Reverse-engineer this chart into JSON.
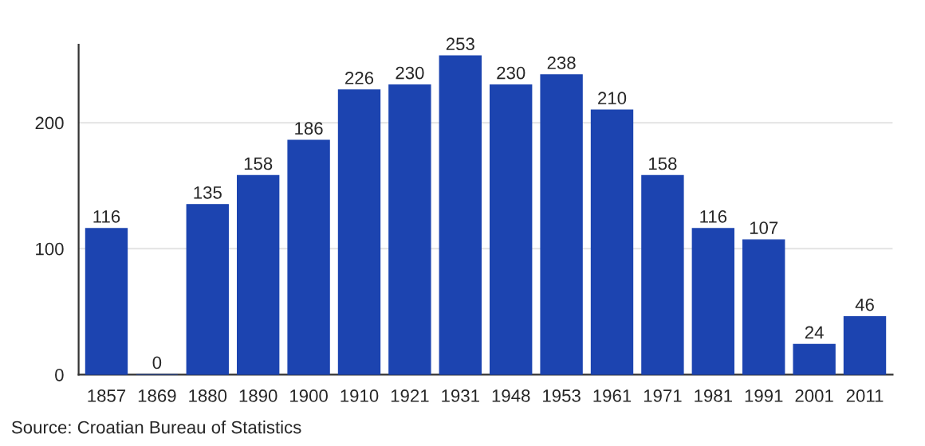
{
  "chart_data": {
    "type": "bar",
    "categories": [
      "1857",
      "1869",
      "1880",
      "1890",
      "1900",
      "1910",
      "1921",
      "1931",
      "1948",
      "1953",
      "1961",
      "1971",
      "1981",
      "1991",
      "2001",
      "2011"
    ],
    "values": [
      116,
      0,
      135,
      158,
      186,
      226,
      230,
      253,
      230,
      238,
      210,
      158,
      116,
      107,
      24,
      46
    ],
    "color": "#1c44b0",
    "ylim": [
      0,
      262
    ],
    "yticks": [
      0,
      100,
      200
    ],
    "grid": "y",
    "data_labels": true,
    "annotations": [
      "Source: Croatian Bureau of Statistics"
    ]
  }
}
